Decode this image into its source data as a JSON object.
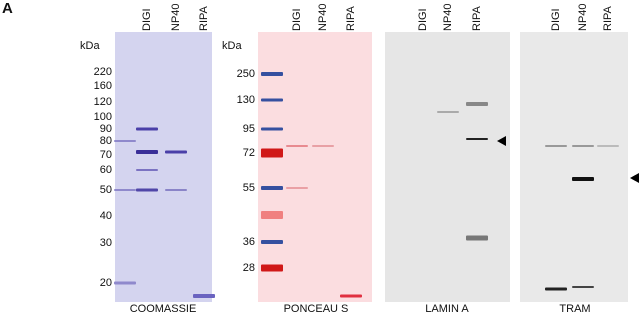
{
  "panel_label": "A",
  "panels": [
    {
      "caption": "COOMASSIE",
      "unit": "kDa",
      "lanes": [
        "DIGI",
        "NP40",
        "RIPA"
      ],
      "markers": [
        220,
        160,
        120,
        100,
        90,
        80,
        70,
        60,
        50,
        40,
        30,
        20
      ]
    },
    {
      "caption": "PONCEAU S",
      "unit": "kDa",
      "lanes": [
        "DIGI",
        "NP40",
        "RIPA"
      ],
      "markers": [
        250,
        130,
        95,
        72,
        55,
        36,
        28
      ]
    },
    {
      "caption": "LAMIN A",
      "lanes": [
        "DIGI",
        "NP40",
        "RIPA"
      ]
    },
    {
      "caption": "TRAM",
      "lanes": [
        "DIGI",
        "NP40",
        "RIPA"
      ]
    }
  ]
}
